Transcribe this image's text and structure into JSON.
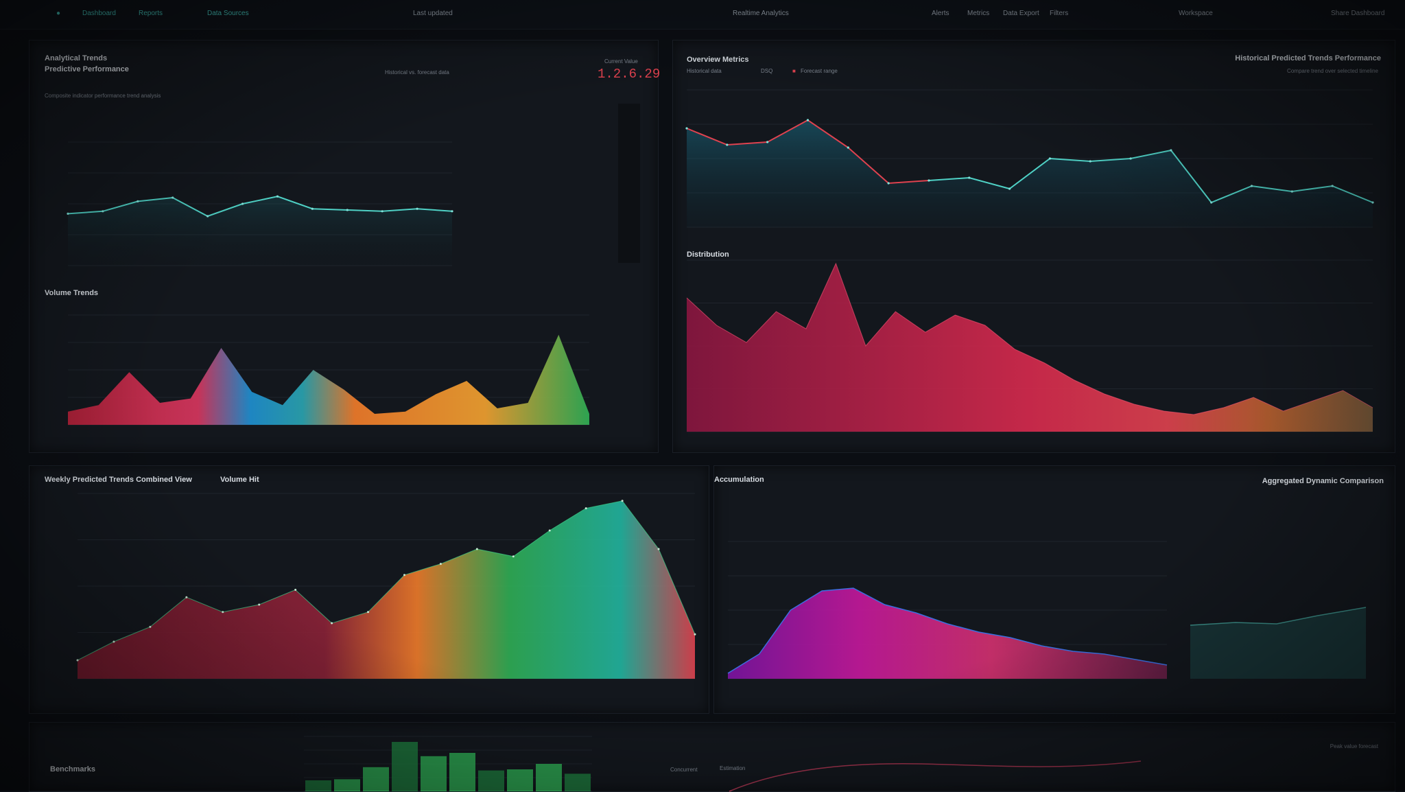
{
  "nav": {
    "home_icon": "dot-icon",
    "items": [
      "Dashboard",
      "Reports",
      "Data Sources",
      "Last updated",
      "Realtime Analytics",
      "Alerts",
      "Metrics",
      "Data Export",
      "Filters",
      "Workspace",
      "Share Dashboard"
    ]
  },
  "panels": {
    "p1": {
      "title1": "Analytical Trends",
      "title2": "Predictive Performance",
      "subtitle": "Composite indicator performance trend analysis",
      "legend": "Historical vs. forecast data",
      "metric_label": "Current Value",
      "metric_value": "1.2.6.29",
      "section2_title": "Volume Trends"
    },
    "p2": {
      "title": "Overview Metrics",
      "legend_a": "Historical data",
      "legend_b": "DSQ",
      "legend_c": "Forecast range",
      "right_title": "Historical Predicted Trends Performance",
      "right_sub": "Compare trend over selected timeline",
      "section2_title": "Distribution"
    },
    "p3": {
      "title": "Weekly Predicted Trends Combined View",
      "tab": "Volume Hit"
    },
    "p4": {
      "title": "Accumulation",
      "right_title": "Aggregated Dynamic Comparison"
    },
    "p5": {
      "title": "Benchmarks",
      "label_a": "Concurrent",
      "label_b": "Estimation",
      "right_label": "Peak value forecast"
    }
  },
  "colors": {
    "teal": "#4fd1c5",
    "red": "#e0424f",
    "pink": "#e0307a",
    "magenta": "#c2189a",
    "green": "#2fae55",
    "orange": "#ef7b2a",
    "blue": "#1f8fd0",
    "bg": "#13171d"
  },
  "chart_data": [
    {
      "id": "trend-line-left",
      "type": "line",
      "series": [
        {
          "values": [
            42,
            44,
            52,
            55,
            40,
            50,
            56,
            46,
            45,
            44,
            46,
            44
          ]
        }
      ],
      "ylim": [
        0,
        100
      ]
    },
    {
      "id": "volume-area-left",
      "type": "area",
      "series": [
        {
          "values": [
            12,
            18,
            48,
            20,
            24,
            70,
            30,
            18,
            50,
            32,
            10,
            12,
            28,
            40,
            15,
            20,
            82,
            10
          ]
        }
      ],
      "ylim": [
        0,
        100
      ]
    },
    {
      "id": "overview-line",
      "type": "line",
      "series": [
        {
          "values": [
            72,
            60,
            62,
            78,
            58,
            32,
            34,
            36,
            28,
            50,
            48,
            50,
            56,
            18,
            30,
            26,
            30,
            18
          ]
        }
      ],
      "ylim": [
        0,
        100
      ]
    },
    {
      "id": "distribution-area",
      "type": "area",
      "series": [
        {
          "values": [
            78,
            62,
            52,
            70,
            60,
            98,
            50,
            70,
            58,
            68,
            62,
            48,
            40,
            30,
            22,
            16,
            12,
            10,
            14,
            20,
            12,
            18,
            24,
            14
          ]
        }
      ],
      "ylim": [
        0,
        100
      ]
    },
    {
      "id": "combined-area",
      "type": "area",
      "series": [
        {
          "values": [
            10,
            20,
            28,
            44,
            36,
            40,
            48,
            30,
            36,
            56,
            62,
            70,
            66,
            80,
            92,
            96,
            70,
            24
          ]
        }
      ],
      "ylim": [
        0,
        100
      ]
    },
    {
      "id": "accumulation-area",
      "type": "area",
      "series": [
        {
          "values": [
            4,
            18,
            50,
            64,
            66,
            54,
            48,
            40,
            34,
            30,
            24,
            20,
            18,
            14,
            10
          ]
        }
      ],
      "ylim": [
        0,
        100
      ]
    },
    {
      "id": "benchmarks-bars",
      "type": "bar",
      "values": [
        20,
        22,
        44,
        90,
        64,
        70,
        38,
        40,
        50,
        32
      ],
      "ylim": [
        0,
        100
      ]
    }
  ]
}
